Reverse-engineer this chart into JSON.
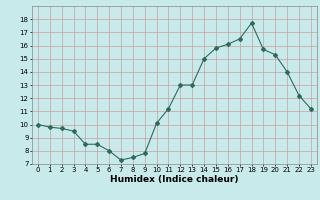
{
  "xlabel": "Humidex (Indice chaleur)",
  "x": [
    0,
    1,
    2,
    3,
    4,
    5,
    6,
    7,
    8,
    9,
    10,
    11,
    12,
    13,
    14,
    15,
    16,
    17,
    18,
    19,
    20,
    21,
    22,
    23
  ],
  "y": [
    10.0,
    9.8,
    9.7,
    9.5,
    8.5,
    8.5,
    8.0,
    7.3,
    7.5,
    7.8,
    10.1,
    11.2,
    13.0,
    13.0,
    15.0,
    15.8,
    16.1,
    16.5,
    17.7,
    15.7,
    15.3,
    14.0,
    12.2,
    11.2
  ],
  "line_color": "#2e6b5e",
  "bg_color": "#c8eaea",
  "grid_color": "#c8a0a0",
  "ylim": [
    7,
    19
  ],
  "yticks": [
    7,
    8,
    9,
    10,
    11,
    12,
    13,
    14,
    15,
    16,
    17,
    18
  ],
  "xticks": [
    0,
    1,
    2,
    3,
    4,
    5,
    6,
    7,
    8,
    9,
    10,
    11,
    12,
    13,
    14,
    15,
    16,
    17,
    18,
    19,
    20,
    21,
    22,
    23
  ],
  "xlim": [
    -0.5,
    23.5
  ]
}
